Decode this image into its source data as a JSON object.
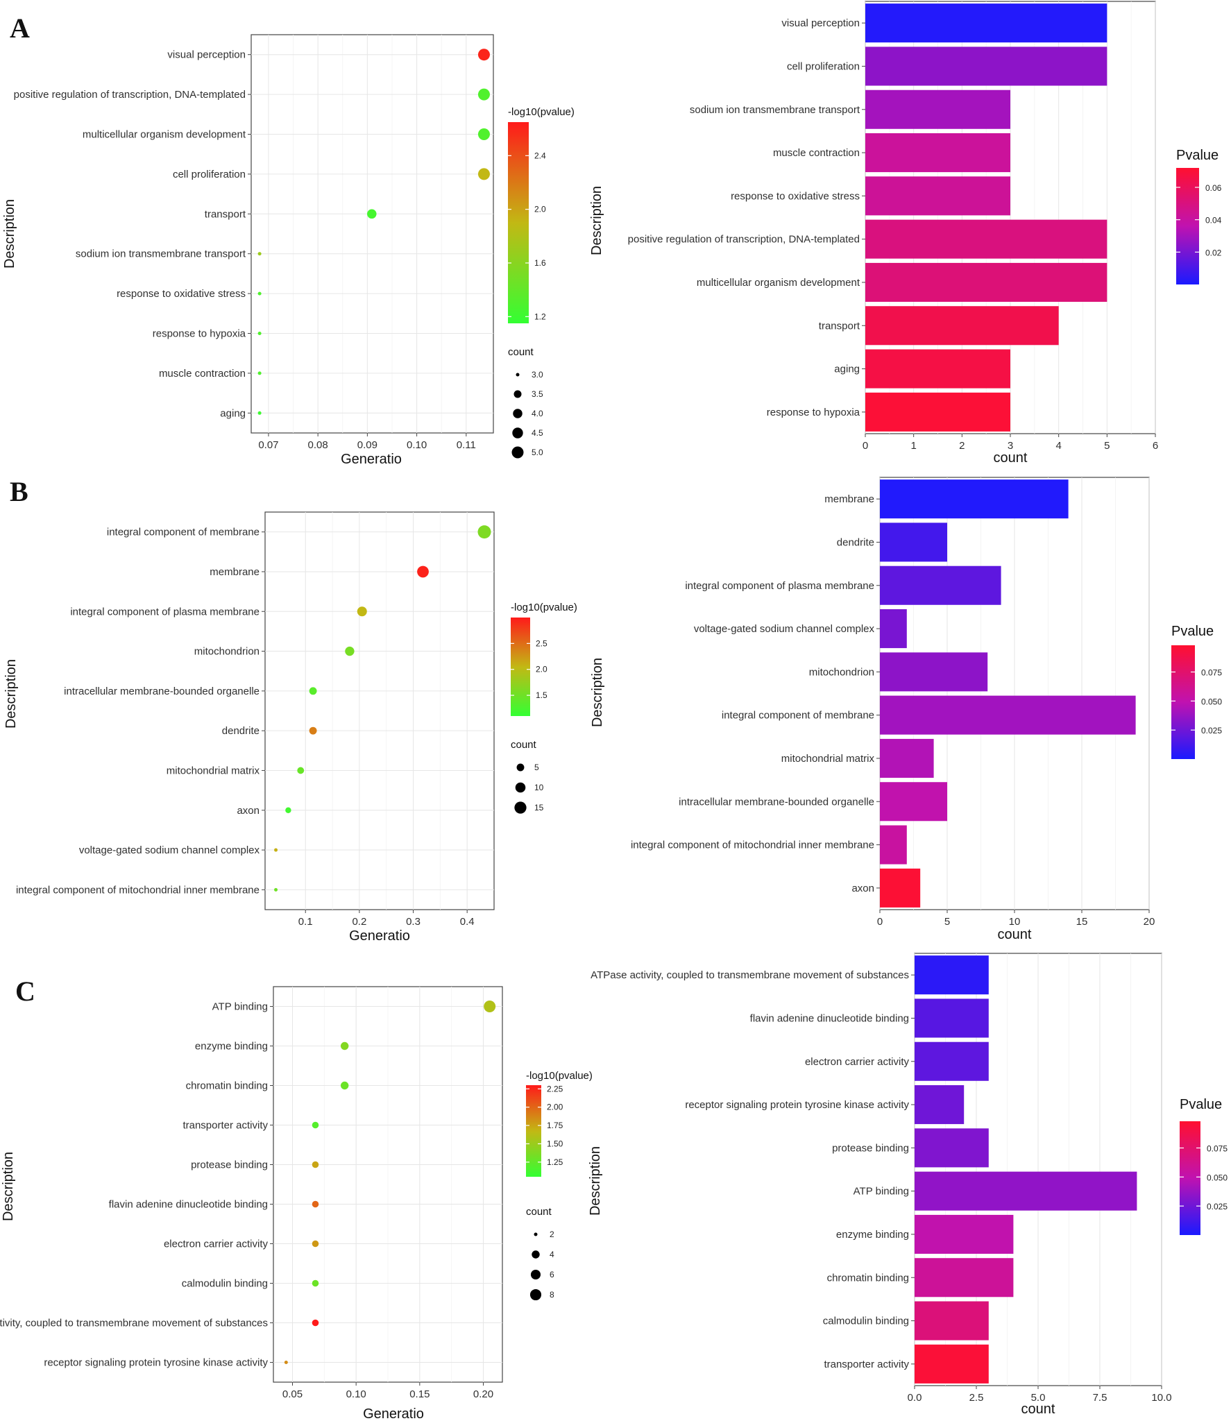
{
  "panels": [
    "A",
    "B",
    "C"
  ],
  "chart_data": [
    {
      "type": "scatter",
      "panel": "A",
      "xlabel": "Generatio",
      "ylabel": "Description",
      "xlim": [
        0.0665,
        0.1155
      ],
      "xticks": [
        0.07,
        0.08,
        0.09,
        0.1,
        0.11
      ],
      "xtick_labels": [
        "0.07",
        "0.08",
        "0.09",
        "0.10",
        "0.11"
      ],
      "categories": [
        "visual perception",
        "positive regulation of transcription, DNA-templated",
        "multicellular organism development",
        "cell proliferation",
        "transport",
        "sodium ion transmembrane transport",
        "response to oxidative stress",
        "response to hypoxia",
        "muscle contraction",
        "aging"
      ],
      "x": [
        0.1136,
        0.1136,
        0.1136,
        0.1136,
        0.0909,
        0.0682,
        0.0682,
        0.0682,
        0.0682,
        0.0682
      ],
      "count": [
        5,
        5,
        5,
        5,
        4,
        3,
        3,
        3,
        3,
        3
      ],
      "color_value": [
        2.6,
        1.3,
        1.3,
        1.9,
        1.25,
        1.7,
        1.3,
        1.3,
        1.3,
        1.2
      ],
      "color_title": "-log10(pvalue)",
      "color_range": [
        1.15,
        2.65
      ],
      "color_ticks": [
        "2.4",
        "2.0",
        "1.6",
        "1.2"
      ],
      "color_tick_values": [
        2.4,
        2.0,
        1.6,
        1.2
      ],
      "size_title": "count",
      "size_ticks": [
        "3.0",
        "3.5",
        "4.0",
        "4.5",
        "5.0"
      ],
      "size_tick_values": [
        3.0,
        3.5,
        4.0,
        4.5,
        5.0
      ],
      "size_range": [
        3,
        5
      ]
    },
    {
      "type": "bar",
      "orientation": "horizontal",
      "panel": "A",
      "xlabel": "count",
      "ylabel": "Description",
      "xlim": [
        0,
        6
      ],
      "xticks": [
        0,
        1,
        2,
        3,
        4,
        5,
        6
      ],
      "xtick_labels": [
        "0",
        "1",
        "2",
        "3",
        "4",
        "5",
        "6"
      ],
      "categories": [
        "visual perception",
        "cell proliferation",
        "sodium ion transmembrane transport",
        "muscle contraction",
        "response to oxidative stress",
        "positive regulation of transcription, DNA-templated",
        "multicellular organism development",
        "transport",
        "aging",
        "response to hypoxia"
      ],
      "values": [
        5,
        5,
        3,
        3,
        3,
        5,
        5,
        4,
        3,
        3
      ],
      "pvalues": [
        0.002,
        0.025,
        0.03,
        0.042,
        0.043,
        0.05,
        0.052,
        0.064,
        0.066,
        0.07
      ],
      "color_title": "Pvalue",
      "color_range": [
        0.0,
        0.072
      ],
      "color_ticks": [
        "0.06",
        "0.04",
        "0.02"
      ],
      "color_tick_values": [
        0.06,
        0.04,
        0.02
      ]
    },
    {
      "type": "scatter",
      "panel": "B",
      "xlabel": "Generatio",
      "ylabel": "Description",
      "xlim": [
        0.025,
        0.45
      ],
      "xticks": [
        0.1,
        0.2,
        0.3,
        0.4
      ],
      "xtick_labels": [
        "0.1",
        "0.2",
        "0.3",
        "0.4"
      ],
      "categories": [
        "integral component of membrane",
        "membrane",
        "integral component of plasma membrane",
        "mitochondrion",
        "intracellular membrane-bounded organelle",
        "dendrite",
        "mitochondrial matrix",
        "axon",
        "voltage-gated sodium channel complex",
        "integral component of mitochondrial inner membrane"
      ],
      "x": [
        0.432,
        0.318,
        0.205,
        0.182,
        0.114,
        0.114,
        0.091,
        0.068,
        0.045,
        0.045
      ],
      "count": [
        19,
        14,
        9,
        8,
        5,
        5,
        4,
        3,
        2,
        2
      ],
      "color_value": [
        1.6,
        2.95,
        2.05,
        1.55,
        1.35,
        2.4,
        1.45,
        1.2,
        2.1,
        1.5
      ],
      "color_title": "-log10(pvalue)",
      "color_range": [
        1.1,
        3.0
      ],
      "color_ticks": [
        "2.5",
        "2.0",
        "1.5"
      ],
      "color_tick_values": [
        2.5,
        2.0,
        1.5
      ],
      "size_title": "count",
      "size_ticks": [
        "5",
        "10",
        "15"
      ],
      "size_tick_values": [
        5,
        10,
        15
      ],
      "size_range": [
        2,
        19
      ]
    },
    {
      "type": "bar",
      "orientation": "horizontal",
      "panel": "B",
      "xlabel": "count",
      "ylabel": "Description",
      "xlim": [
        0,
        20
      ],
      "xticks": [
        0,
        5,
        10,
        15,
        20
      ],
      "xtick_labels": [
        "0",
        "5",
        "10",
        "15",
        "20"
      ],
      "categories": [
        "membrane",
        "dendrite",
        "integral component of plasma membrane",
        "voltage-gated sodium channel complex",
        "mitochondrion",
        "integral component of membrane",
        "mitochondrial matrix",
        "intracellular membrane-bounded organelle",
        "integral component of mitochondrial inner membrane",
        "axon"
      ],
      "values": [
        14,
        5,
        9,
        2,
        8,
        19,
        4,
        5,
        2,
        3
      ],
      "pvalues": [
        0.002,
        0.012,
        0.02,
        0.028,
        0.034,
        0.04,
        0.045,
        0.05,
        0.055,
        0.096
      ],
      "color_title": "Pvalue",
      "color_range": [
        0.0,
        0.098
      ],
      "color_ticks": [
        "0.075",
        "0.050",
        "0.025"
      ],
      "color_tick_values": [
        0.075,
        0.05,
        0.025
      ]
    },
    {
      "type": "scatter",
      "panel": "C",
      "xlabel": "Generatio",
      "ylabel": "Description",
      "xlim": [
        0.035,
        0.215
      ],
      "xticks": [
        0.05,
        0.1,
        0.15,
        0.2
      ],
      "xtick_labels": [
        "0.05",
        "0.10",
        "0.15",
        "0.20"
      ],
      "categories": [
        "ATP binding",
        "enzyme binding",
        "chromatin binding",
        "transporter activity",
        "protease binding",
        "flavin adenine dinucleotide binding",
        "electron carrier activity",
        "calmodulin binding",
        "ATPase activity, coupled to transmembrane movement of substances",
        "receptor signaling protein tyrosine kinase activity"
      ],
      "x": [
        0.205,
        0.091,
        0.091,
        0.068,
        0.068,
        0.068,
        0.068,
        0.068,
        0.068,
        0.045
      ],
      "count": [
        9,
        4,
        4,
        3,
        3,
        3,
        3,
        3,
        3,
        2
      ],
      "color_value": [
        1.6,
        1.4,
        1.3,
        1.2,
        1.75,
        2.0,
        1.8,
        1.3,
        2.3,
        1.85
      ],
      "color_title": "-log10(pvalue)",
      "color_range": [
        1.05,
        2.3
      ],
      "color_ticks": [
        "2.25",
        "2.00",
        "1.75",
        "1.50",
        "1.25"
      ],
      "color_tick_values": [
        2.25,
        2.0,
        1.75,
        1.5,
        1.25
      ],
      "size_title": "count",
      "size_ticks": [
        "2",
        "4",
        "6",
        "8"
      ],
      "size_tick_values": [
        2,
        4,
        6,
        8
      ],
      "size_range": [
        2,
        9
      ]
    },
    {
      "type": "bar",
      "orientation": "horizontal",
      "panel": "C",
      "xlabel": "count",
      "ylabel": "Description",
      "xlim": [
        0,
        10
      ],
      "xticks": [
        0,
        2.5,
        5,
        7.5,
        10
      ],
      "xtick_labels": [
        "0.0",
        "2.5",
        "5.0",
        "7.5",
        "10.0"
      ],
      "categories": [
        "ATPase activity, coupled to transmembrane movement of substances",
        "flavin adenine dinucleotide binding",
        "electron carrier activity",
        "receptor signaling protein tyrosine kinase activity",
        "protease binding",
        "ATP binding",
        "enzyme binding",
        "chromatin binding",
        "calmodulin binding",
        "transporter activity"
      ],
      "values": [
        3,
        3,
        3,
        2,
        3,
        9,
        4,
        4,
        3,
        3
      ],
      "pvalues": [
        0.005,
        0.018,
        0.02,
        0.025,
        0.03,
        0.035,
        0.05,
        0.058,
        0.07,
        0.095
      ],
      "color_title": "Pvalue",
      "color_range": [
        0.0,
        0.098
      ],
      "color_ticks": [
        "0.075",
        "0.050",
        "0.025"
      ],
      "color_tick_values": [
        0.075,
        0.05,
        0.025
      ]
    }
  ]
}
